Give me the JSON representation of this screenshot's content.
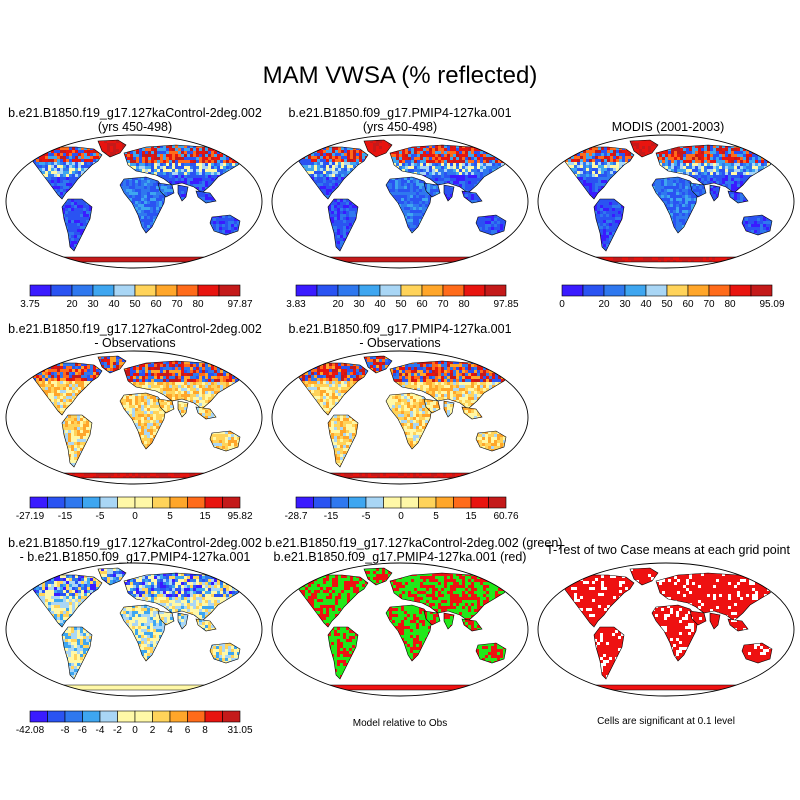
{
  "title": "MAM VWSA (% reflected)",
  "palette": {
    "absolute": [
      "#3a1bff",
      "#2a53f2",
      "#2f78ef",
      "#3ea6f0",
      "#a9d6f5",
      "#fff8a7",
      "#ffd35a",
      "#ffa62a",
      "#ff6b1a",
      "#e8140f",
      "#c41a1a"
    ],
    "difference": [
      "#3a1bff",
      "#2a53f2",
      "#2f78ef",
      "#3ea6f0",
      "#a9d6f5",
      "#fff8a7",
      "#ffd35a",
      "#ffa62a",
      "#ff6b1a",
      "#e8140f",
      "#c41a1a"
    ],
    "green": "#22e81a",
    "red": "#ee1111"
  },
  "panels": [
    {
      "id": "p1",
      "title1": "b.e21.B1850.f19_g17.127kaControl-2deg.002",
      "title2": "(yrs 450-498)",
      "style": "abs-model",
      "colorbar": {
        "labels": [
          "3.75",
          "",
          "20",
          "30",
          "40",
          "50",
          "60",
          "70",
          "80",
          "",
          "97.87"
        ]
      }
    },
    {
      "id": "p2",
      "title1": "b.e21.B1850.f09_g17.PMIP4-127ka.001",
      "title2": "(yrs 450-498)",
      "style": "abs-model",
      "colorbar": {
        "labels": [
          "3.83",
          "",
          "20",
          "30",
          "40",
          "50",
          "60",
          "70",
          "80",
          "",
          "97.85"
        ]
      }
    },
    {
      "id": "p3",
      "title1": "MODIS (2001-2003)",
      "title2": "",
      "style": "abs-obs",
      "colorbar": {
        "labels": [
          "0",
          "",
          "20",
          "30",
          "40",
          "50",
          "60",
          "70",
          "80",
          "",
          "95.09"
        ]
      }
    },
    {
      "id": "p4",
      "title1": "b.e21.B1850.f19_g17.127kaControl-2deg.002",
      "title2": "- Observations",
      "style": "diff-obs",
      "colorbar": {
        "labels": [
          "-27.19",
          "",
          "-15",
          "",
          "-5",
          "",
          "0",
          "",
          "5",
          "",
          "15",
          "",
          "95.82"
        ]
      }
    },
    {
      "id": "p5",
      "title1": "b.e21.B1850.f09_g17.PMIP4-127ka.001",
      "title2": "- Observations",
      "style": "diff-obs",
      "colorbar": {
        "labels": [
          "-28.7",
          "",
          "-15",
          "",
          "-5",
          "",
          "0",
          "",
          "5",
          "",
          "15",
          "",
          "60.76"
        ]
      }
    },
    {
      "id": "p6",
      "title1": "b.e21.B1850.f19_g17.127kaControl-2deg.002",
      "title2": "- b.e21.B1850.f09_g17.PMIP4-127ka.001",
      "style": "diff-case",
      "colorbar": {
        "labels": [
          "-42.08",
          "",
          "-8",
          "-6",
          "-4",
          "-2",
          "0",
          "2",
          "4",
          "6",
          "8",
          "",
          "31.05"
        ]
      }
    },
    {
      "id": "p7",
      "title1": "b.e21.B1850.f19_g17.127kaControl-2deg.002 (green)",
      "title2": "b.e21.B1850.f09_g17.PMIP4-127ka.001 (red)",
      "style": "green-red",
      "footnote": "Model relative to Obs"
    },
    {
      "id": "p8",
      "title1": "T-Test of two Case means at each grid point",
      "title2": "",
      "style": "ttest",
      "footnote": "Cells are significant at 0.1 level"
    }
  ],
  "chart_data": {
    "type": "heatmap",
    "title": "MAM VWSA (% reflected)",
    "variable": "VWSA",
    "season": "MAM",
    "units": "% reflected",
    "projection": "Robinson",
    "panels": [
      {
        "title": "b.e21.B1850.f19_g17.127kaControl-2deg.002 (yrs 450-498)",
        "min": 3.75,
        "max": 97.87,
        "levels": [
          20,
          30,
          40,
          50,
          60,
          70,
          80
        ]
      },
      {
        "title": "b.e21.B1850.f09_g17.PMIP4-127ka.001 (yrs 450-498)",
        "min": 3.83,
        "max": 97.85,
        "levels": [
          20,
          30,
          40,
          50,
          60,
          70,
          80
        ]
      },
      {
        "title": "MODIS (2001-2003)",
        "min": 0,
        "max": 95.09,
        "levels": [
          20,
          30,
          40,
          50,
          60,
          70,
          80
        ]
      },
      {
        "title": "b.e21.B1850.f19_g17.127kaControl-2deg.002 - Observations",
        "min": -27.19,
        "max": 95.82,
        "levels": [
          -15,
          -5,
          0,
          5,
          15
        ]
      },
      {
        "title": "b.e21.B1850.f09_g17.PMIP4-127ka.001 - Observations",
        "min": -28.7,
        "max": 60.76,
        "levels": [
          -15,
          -5,
          0,
          5,
          15
        ]
      },
      {
        "title": "b.e21.B1850.f19_g17.127kaControl-2deg.002 - b.e21.B1850.f09_g17.PMIP4-127ka.001",
        "min": -42.08,
        "max": 31.05,
        "levels": [
          -8,
          -6,
          -4,
          -2,
          0,
          2,
          4,
          6,
          8
        ]
      },
      {
        "title": "b.e21.B1850.f19_g17.127kaControl-2deg.002 (green) b.e21.B1850.f09_g17.PMIP4-127ka.001 (red)",
        "note": "Model relative to Obs"
      },
      {
        "title": "T-Test of two Case means at each grid point",
        "note": "Cells are significant at 0.1 level"
      }
    ]
  }
}
